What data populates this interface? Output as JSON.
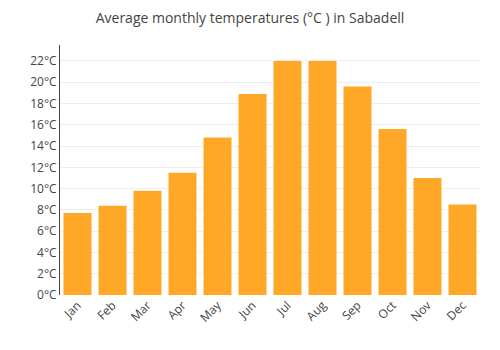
{
  "chart_data": {
    "type": "bar",
    "title": "Average monthly temperatures (°C ) in Sabadell",
    "categories": [
      "Jan",
      "Feb",
      "Mar",
      "Apr",
      "May",
      "Jun",
      "Jul",
      "Aug",
      "Sep",
      "Oct",
      "Nov",
      "Dec"
    ],
    "values": [
      7.7,
      8.4,
      9.8,
      11.5,
      14.8,
      18.9,
      22.0,
      22.0,
      19.6,
      15.6,
      11.0,
      8.5
    ],
    "color": "#FFA726",
    "ylim": [
      0,
      23.5
    ],
    "yticks": [
      {
        "value": 0,
        "label": "0°C"
      },
      {
        "value": 2,
        "label": "2°C"
      },
      {
        "value": 4,
        "label": "4°C"
      },
      {
        "value": 6,
        "label": "6°C"
      },
      {
        "value": 8,
        "label": "8°C"
      },
      {
        "value": 10,
        "label": "10°C"
      },
      {
        "value": 12,
        "label": "12°C"
      },
      {
        "value": 14,
        "label": "14°C"
      },
      {
        "value": 16,
        "label": "16°C"
      },
      {
        "value": 18,
        "label": "18°C"
      },
      {
        "value": 20,
        "label": "20°C"
      },
      {
        "value": 22,
        "label": "22°C"
      }
    ],
    "grid": true
  }
}
